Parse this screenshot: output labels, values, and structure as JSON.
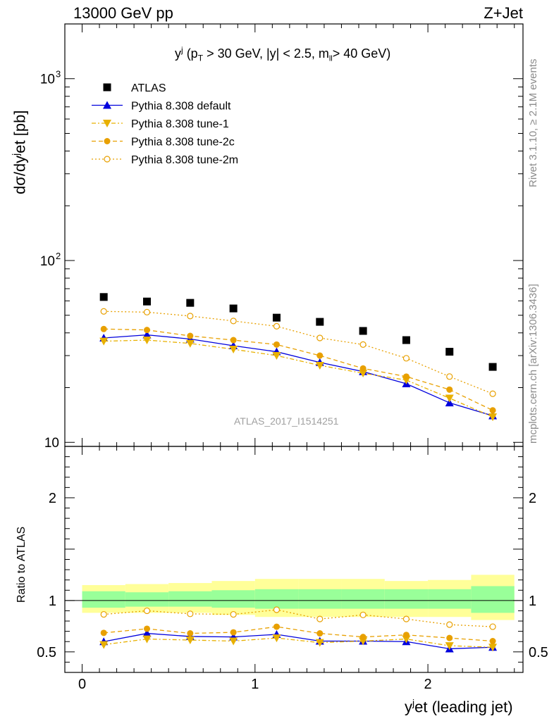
{
  "header": {
    "left": "13000 GeV pp",
    "right": "Z+Jet"
  },
  "side_text": {
    "rivet": "Rivet 3.1.10, ≥ 2.1M events",
    "mcplots": "mcplots.cern.ch [arXiv:1306.3436]"
  },
  "watermark": "ATLAS_2017_I1514251",
  "chart_data": {
    "type": "scatter",
    "title_main": "y",
    "title_sup": "j",
    "title_rest": "(p",
    "title_sub": "T",
    "title_cuts": "> 30 GeV, |y| < 2.5, m",
    "title_sub2": "ll",
    "title_end": "> 40 GeV)",
    "xlabel": "y",
    "xlabel_sup": "j",
    "xlabel_rest": "et (leading jet)",
    "ylabel": "dσ/dy",
    "ylabel_sup": "j",
    "ylabel_rest": "et [pb]",
    "ratio_ylabel": "Ratio to ATLAS",
    "xlim": [
      -0.1,
      2.55
    ],
    "ylim": [
      9.5,
      2000
    ],
    "yscale": "log",
    "ratio_ylim": [
      0.3,
      2.5
    ],
    "x_ticks": [
      {
        "v": 0,
        "label": "0"
      },
      {
        "v": 1,
        "label": "1"
      },
      {
        "v": 2,
        "label": "2"
      }
    ],
    "y_ticks": [
      {
        "v": 10,
        "label": "10"
      },
      {
        "v": 100,
        "label": "10",
        "sup": "2"
      },
      {
        "v": 1000,
        "label": "10",
        "sup": "3"
      }
    ],
    "ratio_ticks": [
      {
        "v": 0.5,
        "label": "0.5"
      },
      {
        "v": 1,
        "label": "1"
      },
      {
        "v": 2,
        "label": "2"
      }
    ],
    "bins": [
      [
        0,
        0.25
      ],
      [
        0.25,
        0.5
      ],
      [
        0.5,
        0.75
      ],
      [
        0.75,
        1.0
      ],
      [
        1.0,
        1.25
      ],
      [
        1.25,
        1.5
      ],
      [
        1.5,
        1.75
      ],
      [
        1.75,
        2.0
      ],
      [
        2.0,
        2.25
      ],
      [
        2.25,
        2.5
      ]
    ],
    "x": [
      0.125,
      0.375,
      0.625,
      0.875,
      1.125,
      1.375,
      1.625,
      1.875,
      2.125,
      2.375
    ],
    "band_inner": [
      [
        0.93,
        1.09
      ],
      [
        0.94,
        1.08
      ],
      [
        0.94,
        1.09
      ],
      [
        0.93,
        1.1
      ],
      [
        0.92,
        1.11
      ],
      [
        0.92,
        1.11
      ],
      [
        0.92,
        1.11
      ],
      [
        0.92,
        1.11
      ],
      [
        0.92,
        1.11
      ],
      [
        0.88,
        1.14
      ]
    ],
    "band_outer": [
      [
        0.88,
        1.15
      ],
      [
        0.88,
        1.16
      ],
      [
        0.88,
        1.17
      ],
      [
        0.86,
        1.19
      ],
      [
        0.84,
        1.21
      ],
      [
        0.84,
        1.21
      ],
      [
        0.84,
        1.21
      ],
      [
        0.84,
        1.19
      ],
      [
        0.84,
        1.2
      ],
      [
        0.81,
        1.25
      ]
    ],
    "series": [
      {
        "name": "ATLAS",
        "color": "#000000",
        "marker": "square",
        "line": "none",
        "values": [
          63,
          59.5,
          58.5,
          54.5,
          48.5,
          46,
          41,
          36.5,
          31.5,
          26
        ]
      },
      {
        "name": "Pythia 8.308 default",
        "color": "#0000dd",
        "marker": "triangle-up",
        "line": "solid",
        "values": [
          37.5,
          39,
          37,
          34,
          31.5,
          27.5,
          24.5,
          21,
          16.5,
          14
        ],
        "ratio": [
          0.6,
          0.68,
          0.65,
          0.645,
          0.67,
          0.605,
          0.605,
          0.6,
          0.53,
          0.545
        ]
      },
      {
        "name": "Pythia 8.308 tune-1",
        "color": "#e8b000",
        "marker": "triangle-down",
        "line": "dashdot",
        "values": [
          36,
          36.5,
          35,
          32.5,
          30,
          26.5,
          24,
          22,
          17.5,
          13.8
        ],
        "ratio": [
          0.57,
          0.625,
          0.615,
          0.605,
          0.635,
          0.59,
          0.605,
          0.625,
          0.56,
          0.545
        ]
      },
      {
        "name": "Pythia 8.308 tune-2c",
        "color": "#e8a000",
        "marker": "circle",
        "line": "dashed",
        "values": [
          42,
          41.5,
          38.5,
          36.5,
          34.5,
          30,
          25.5,
          23,
          19.5,
          15
        ],
        "ratio": [
          0.685,
          0.725,
          0.68,
          0.69,
          0.745,
          0.68,
          0.645,
          0.665,
          0.635,
          0.605
        ]
      },
      {
        "name": "Pythia 8.308 tune-2m",
        "color": "#e8a000",
        "marker": "circle-open",
        "line": "dotted",
        "values": [
          52.5,
          52,
          49.5,
          46.5,
          43.5,
          37.5,
          34.5,
          29,
          23,
          18.5
        ],
        "ratio": [
          0.865,
          0.9,
          0.87,
          0.865,
          0.91,
          0.82,
          0.86,
          0.82,
          0.765,
          0.745
        ]
      }
    ]
  }
}
